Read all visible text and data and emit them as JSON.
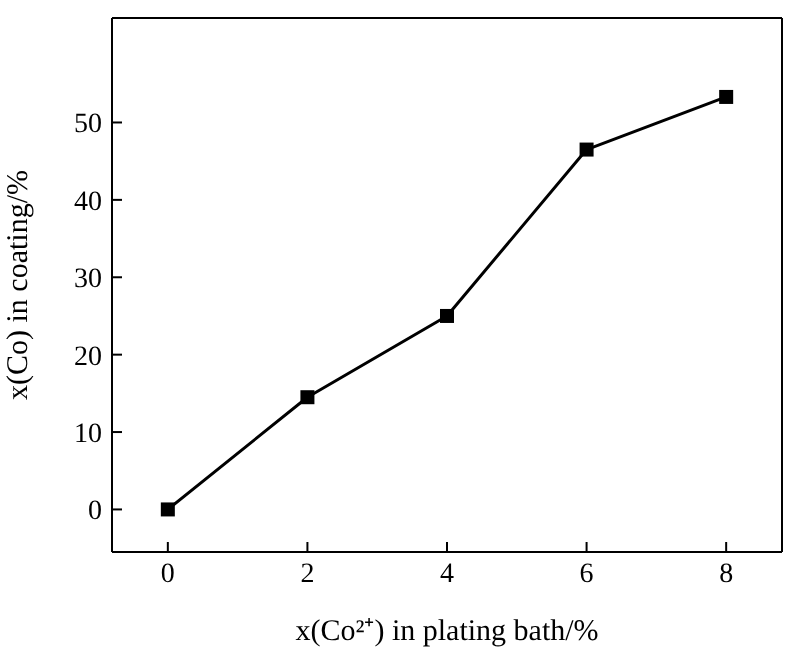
{
  "chart_data": {
    "type": "line",
    "xlabel": "x(Co²⁺) in plating bath/%",
    "ylabel": "x(Co) in coating/%",
    "x": [
      0,
      2,
      4,
      6,
      8
    ],
    "series": [
      {
        "color": "#000000",
        "values": [
          0,
          14.5,
          25,
          46.5,
          53.3
        ]
      }
    ],
    "xlim": [
      -0.8,
      8.8
    ],
    "xticks": [
      0,
      2,
      4,
      6,
      8
    ],
    "ylim": [
      -5.5,
      63.5
    ],
    "yticks": [
      0,
      10,
      20,
      30,
      40,
      50
    ],
    "marker": "square",
    "line_style": "solid"
  }
}
